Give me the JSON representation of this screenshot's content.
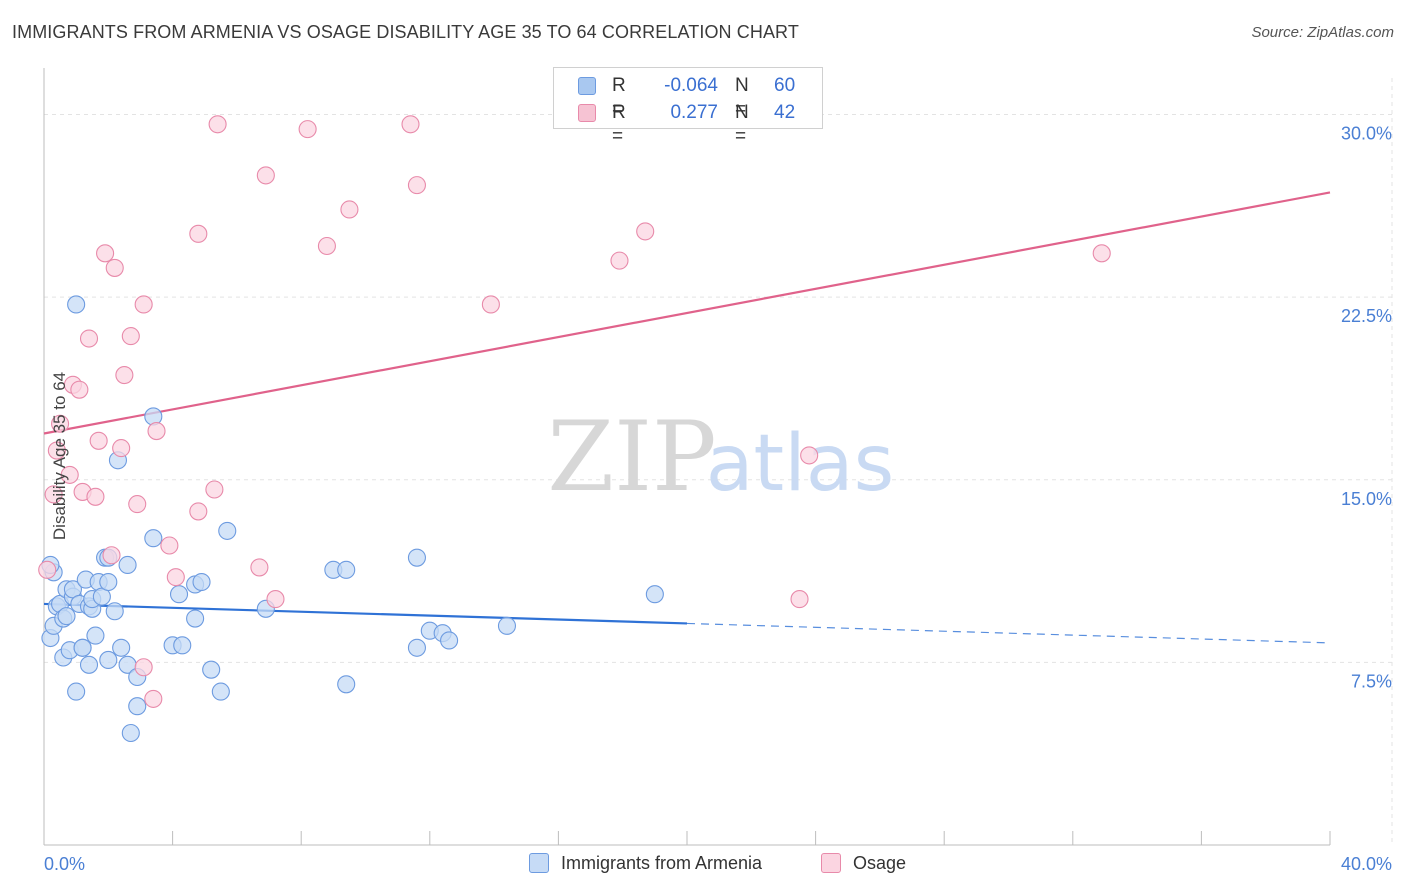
{
  "title": "IMMIGRANTS FROM ARMENIA VS OSAGE DISABILITY AGE 35 TO 64 CORRELATION CHART",
  "source": "Source: ZipAtlas.com",
  "watermark": {
    "zip": "ZIP",
    "atlas": "atlas"
  },
  "legend": {
    "rows": [
      {
        "r_label": "R =",
        "r_value": "-0.064",
        "n_label": "N =",
        "n_value": "60",
        "color": "#a9c8f0",
        "border": "#6d9be0"
      },
      {
        "r_label": "R =",
        "r_value": "0.277",
        "n_label": "N =",
        "n_value": "42",
        "color": "#f6c3d3",
        "border": "#e88aaa"
      }
    ]
  },
  "bottom_legend": [
    {
      "label": "Immigrants from Armenia",
      "color": "#c6dbf6",
      "border": "#6d9be0"
    },
    {
      "label": "Osage",
      "color": "#fbd5e1",
      "border": "#e88aaa"
    }
  ],
  "chart_data": {
    "type": "scatter",
    "title": "IMMIGRANTS FROM ARMENIA VS OSAGE DISABILITY AGE 35 TO 64 CORRELATION CHART",
    "xlabel": "",
    "ylabel": "Disability Age 35 to 64",
    "xlim": [
      0,
      40
    ],
    "ylim": [
      0,
      31.5
    ],
    "x_tick_labels": [
      {
        "value": 0,
        "label": "0.0%"
      },
      {
        "value": 40,
        "label": "40.0%"
      }
    ],
    "y_tick_labels": [
      {
        "value": 7.5,
        "label": "7.5%"
      },
      {
        "value": 15.0,
        "label": "15.0%"
      },
      {
        "value": 22.5,
        "label": "22.5%"
      },
      {
        "value": 30.0,
        "label": "30.0%"
      }
    ],
    "x_minor_ticks": [
      0,
      4,
      8,
      12,
      16,
      20,
      24,
      28,
      32,
      36,
      40
    ],
    "series": [
      {
        "name": "Immigrants from Armenia",
        "color": "#6d9be0",
        "fill": "#c6dbf6",
        "trend": {
          "x0": 0,
          "y0": 9.9,
          "x1": 20,
          "y1": 9.1,
          "dash_to_x": 40,
          "dash_to_y": 8.3,
          "color": "#2f72d6"
        },
        "points": [
          [
            0.2,
            8.5
          ],
          [
            0.3,
            9.0
          ],
          [
            0.3,
            11.2
          ],
          [
            0.4,
            9.8
          ],
          [
            0.5,
            9.9
          ],
          [
            0.6,
            9.3
          ],
          [
            0.6,
            7.7
          ],
          [
            0.7,
            10.5
          ],
          [
            0.7,
            9.4
          ],
          [
            0.8,
            8.0
          ],
          [
            0.9,
            10.2
          ],
          [
            0.9,
            10.5
          ],
          [
            1.0,
            6.3
          ],
          [
            1.1,
            9.9
          ],
          [
            1.2,
            8.1
          ],
          [
            1.2,
            8.1
          ],
          [
            1.3,
            10.9
          ],
          [
            1.4,
            9.8
          ],
          [
            1.4,
            7.4
          ],
          [
            1.5,
            9.7
          ],
          [
            1.5,
            10.1
          ],
          [
            1.6,
            8.6
          ],
          [
            1.7,
            10.8
          ],
          [
            1.8,
            10.2
          ],
          [
            1.9,
            11.8
          ],
          [
            2.0,
            11.8
          ],
          [
            2.0,
            10.8
          ],
          [
            2.0,
            7.6
          ],
          [
            2.2,
            9.6
          ],
          [
            2.3,
            15.8
          ],
          [
            2.4,
            8.1
          ],
          [
            2.6,
            7.4
          ],
          [
            2.6,
            11.5
          ],
          [
            2.7,
            4.6
          ],
          [
            2.9,
            6.9
          ],
          [
            2.9,
            5.7
          ],
          [
            3.4,
            17.6
          ],
          [
            3.4,
            12.6
          ],
          [
            1.0,
            22.2
          ],
          [
            4.0,
            8.2
          ],
          [
            4.3,
            8.2
          ],
          [
            4.2,
            10.3
          ],
          [
            4.7,
            10.7
          ],
          [
            4.7,
            9.3
          ],
          [
            4.9,
            10.8
          ],
          [
            5.2,
            7.2
          ],
          [
            5.5,
            6.3
          ],
          [
            5.7,
            12.9
          ],
          [
            6.9,
            9.7
          ],
          [
            9.0,
            11.3
          ],
          [
            9.4,
            11.3
          ],
          [
            9.4,
            6.6
          ],
          [
            11.6,
            11.8
          ],
          [
            11.6,
            8.1
          ],
          [
            12.0,
            8.8
          ],
          [
            12.4,
            8.7
          ],
          [
            12.6,
            8.4
          ],
          [
            14.4,
            9.0
          ],
          [
            19.0,
            10.3
          ],
          [
            0.2,
            11.5
          ]
        ]
      },
      {
        "name": "Osage",
        "color": "#e88aaa",
        "fill": "#fbd5e1",
        "trend": {
          "x0": 0,
          "y0": 16.9,
          "x1": 40,
          "y1": 26.8,
          "color": "#e0628b"
        },
        "points": [
          [
            0.3,
            14.4
          ],
          [
            0.4,
            16.2
          ],
          [
            0.5,
            17.3
          ],
          [
            0.8,
            15.2
          ],
          [
            0.9,
            18.9
          ],
          [
            1.1,
            18.7
          ],
          [
            1.2,
            14.5
          ],
          [
            1.4,
            20.8
          ],
          [
            1.6,
            14.3
          ],
          [
            1.7,
            16.6
          ],
          [
            1.9,
            24.3
          ],
          [
            2.1,
            11.9
          ],
          [
            2.2,
            23.7
          ],
          [
            2.4,
            16.3
          ],
          [
            2.5,
            19.3
          ],
          [
            2.7,
            20.9
          ],
          [
            2.9,
            14.0
          ],
          [
            3.1,
            7.3
          ],
          [
            3.1,
            22.2
          ],
          [
            3.4,
            6.0
          ],
          [
            3.5,
            17.0
          ],
          [
            3.9,
            12.3
          ],
          [
            4.1,
            11.0
          ],
          [
            4.8,
            13.7
          ],
          [
            4.8,
            25.1
          ],
          [
            5.3,
            14.6
          ],
          [
            5.4,
            29.6
          ],
          [
            6.7,
            11.4
          ],
          [
            6.9,
            27.5
          ],
          [
            7.2,
            10.1
          ],
          [
            8.2,
            29.4
          ],
          [
            8.8,
            24.6
          ],
          [
            9.5,
            26.1
          ],
          [
            11.4,
            29.6
          ],
          [
            11.6,
            27.1
          ],
          [
            13.9,
            22.2
          ],
          [
            17.9,
            24.0
          ],
          [
            18.7,
            25.2
          ],
          [
            23.5,
            10.1
          ],
          [
            23.8,
            16.0
          ],
          [
            32.9,
            24.3
          ],
          [
            0.1,
            11.3
          ]
        ]
      }
    ]
  }
}
